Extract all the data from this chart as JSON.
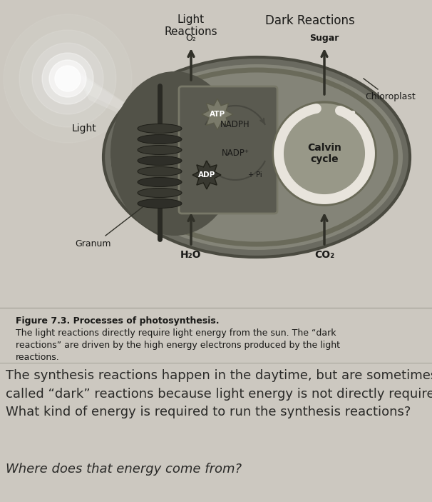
{
  "bg_color": "#ccc8c0",
  "bg_color_top": "#ccc8c0",
  "bg_color_bottom": "#c8c4bc",
  "figure_caption_bold": "Figure 7.3. Processes of photosynthesis.",
  "figure_caption_rest": " The light reactions directly require light energy from the sun. The “dark reactions” are driven by the high energy electrons produced by the light reactions.",
  "body_text_1": "The synthesis reactions happen in the daytime, but are sometimes\ncalled “dark” reactions because light energy is not directly required.\nWhat kind of energy is required to run the synthesis reactions?",
  "body_text_2": "Where does that energy come from?",
  "label_light_reactions": "Light\nReactions",
  "label_dark_reactions": "Dark Reactions",
  "label_sugar": "Sugar",
  "label_chloroplast": "Chloroplast",
  "label_light": "Light",
  "label_atp": "ATP",
  "label_nadph": "NADPH",
  "label_calvin": "Calvin\ncycle",
  "label_nadp": "NADP⁺",
  "label_adp": "ADP",
  "label_granum": "Granum",
  "label_h2o": "H₂O",
  "label_co2": "CO₂",
  "label_o2": "O₂",
  "chloro_outer_color": "#888880",
  "chloro_inner_color": "#787870",
  "thyl_box_color": "#686858",
  "granum_color": "#383830",
  "calvin_color": "#989888",
  "atp_color": "#a8a090",
  "adp_color": "#505048",
  "arrow_color": "#484840",
  "white_arrow_color": "#e8e4dc"
}
